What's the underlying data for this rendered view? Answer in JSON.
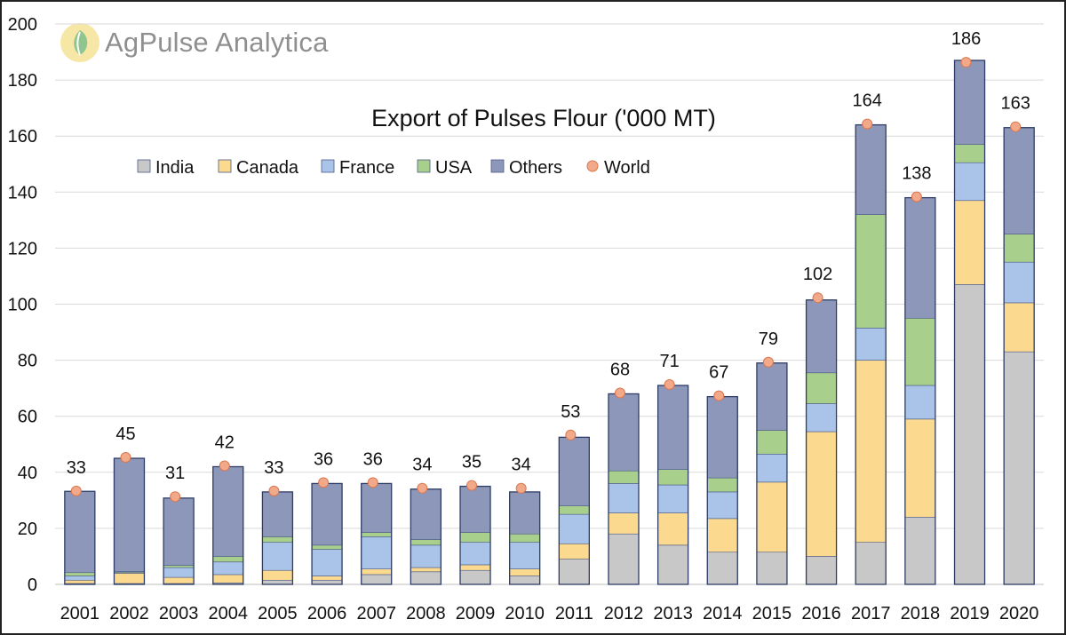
{
  "brand": {
    "name_bold": "AgPulse",
    "name_light": " Analytica"
  },
  "chart_data": {
    "type": "bar",
    "stacked": true,
    "title": "Export of Pulses Flour ('000 MT)",
    "xlabel": "",
    "ylabel": "",
    "ylim": [
      0,
      200
    ],
    "yticks": [
      0,
      20,
      40,
      60,
      80,
      100,
      120,
      140,
      160,
      180,
      200
    ],
    "grid": true,
    "legend_position": "top-left",
    "categories": [
      "2001",
      "2002",
      "2003",
      "2004",
      "2005",
      "2006",
      "2007",
      "2008",
      "2009",
      "2010",
      "2011",
      "2012",
      "2013",
      "2014",
      "2015",
      "2016",
      "2017",
      "2018",
      "2019",
      "2020"
    ],
    "series": [
      {
        "name": "India",
        "color": "#c8c8c8",
        "values": [
          0.3,
          0.3,
          0.3,
          0.5,
          1.5,
          1.5,
          3.5,
          4.5,
          5,
          3,
          9,
          18,
          14,
          11.5,
          11.5,
          10,
          15,
          24,
          107,
          83
        ]
      },
      {
        "name": "Canada",
        "color": "#fbd98f",
        "values": [
          1.2,
          3.7,
          2.2,
          3,
          3.5,
          1.5,
          2,
          1.5,
          2,
          2.5,
          5.5,
          7.5,
          11.5,
          12,
          25,
          44.5,
          65,
          35,
          30,
          17.5
        ]
      },
      {
        "name": "France",
        "color": "#a9c4e8",
        "values": [
          1.5,
          0.2,
          3.5,
          4.5,
          10,
          9.5,
          11.5,
          8,
          8,
          9.5,
          10.5,
          10.5,
          10,
          9.5,
          10,
          10,
          11.5,
          12,
          13.5,
          14.5
        ]
      },
      {
        "name": "USA",
        "color": "#a9cf8d",
        "values": [
          1.2,
          0.4,
          0.8,
          2,
          2,
          1.5,
          1.5,
          2,
          3.5,
          3,
          3,
          4.5,
          5.5,
          5,
          8.5,
          11,
          40.5,
          24,
          6.5,
          10
        ]
      },
      {
        "name": "Others",
        "color": "#8c97b9",
        "values": [
          29,
          40.4,
          24,
          32,
          16,
          22,
          17.5,
          18,
          16.5,
          15,
          24.5,
          27.5,
          30,
          29,
          24,
          26,
          32,
          43,
          30,
          38
        ]
      }
    ],
    "world": {
      "name": "World",
      "color": "#f2a98a",
      "values": [
        33,
        45,
        31,
        42,
        33,
        36,
        36,
        34,
        35,
        34,
        53,
        68,
        71,
        67,
        79,
        102,
        164,
        138,
        186,
        163
      ]
    },
    "data_labels": [
      "33",
      "45",
      "31",
      "42",
      "33",
      "36",
      "36",
      "34",
      "35",
      "34",
      "53",
      "68",
      "71",
      "67",
      "79",
      "102",
      "164",
      "138",
      "186",
      "163"
    ]
  }
}
